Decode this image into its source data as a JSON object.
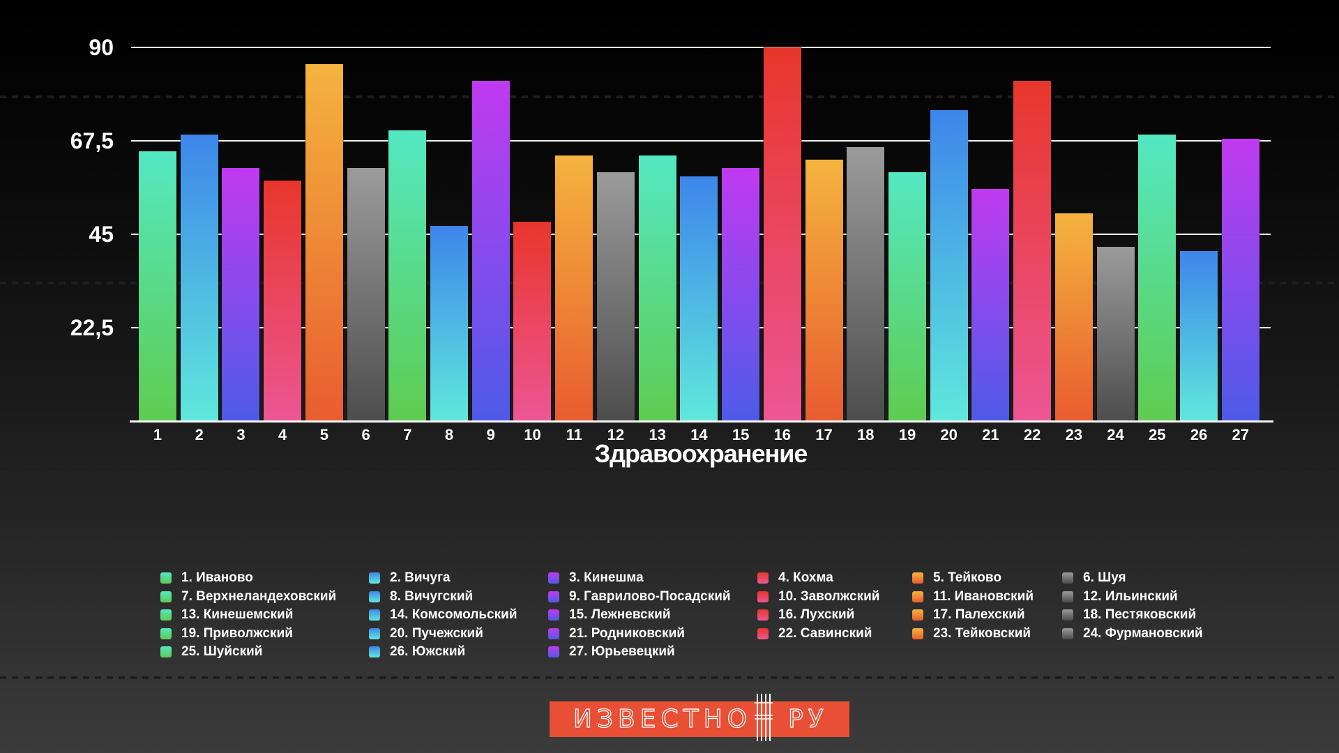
{
  "chart": {
    "y_tick_labels": [
      "90",
      "67,5",
      "45",
      "22,5"
    ],
    "xlabel": "Здравоохранение"
  },
  "chart_data": {
    "type": "bar",
    "title": "",
    "xlabel": "Здравоохранение",
    "ylabel": "",
    "ylim": [
      0,
      90
    ],
    "y_ticks": [
      90,
      67.5,
      45,
      22.5
    ],
    "grid": true,
    "legend_position": "bottom",
    "categories": [
      1,
      2,
      3,
      4,
      5,
      6,
      7,
      8,
      9,
      10,
      11,
      12,
      13,
      14,
      15,
      16,
      17,
      18,
      19,
      20,
      21,
      22,
      23,
      24,
      25,
      26,
      27
    ],
    "values": [
      65,
      69,
      61,
      58,
      86,
      61,
      70,
      47,
      82,
      48,
      64,
      60,
      64,
      59,
      61,
      90,
      63,
      66,
      60,
      75,
      56,
      82,
      50,
      42,
      69,
      41,
      68
    ],
    "series_labels": [
      "1. Иваново",
      "2. Вичуга",
      "3. Кинешма",
      "4. Кохма",
      "5. Тейково",
      "6. Шуя",
      "7. Верхнеландеховский",
      "8. Вичугский",
      "9. Гаврилово-Посадский",
      "10. Заволжский",
      "11. Ивановский",
      "12. Ильинский",
      "13. Кинешемский",
      "14. Комсомольский",
      "15. Лежневский",
      "16. Лухский",
      "17. Палехский",
      "18. Пестяковский",
      "19. Приволжский",
      "20. Пучежский",
      "21. Родниковский",
      "22. Савинский",
      "23. Тейковский",
      "24. Фурмановский",
      "25. Шуйский",
      "26. Южский",
      "27. Юрьевецкий"
    ]
  },
  "palette": {
    "green": {
      "top": "#54E8C2",
      "bottom": "#5ECC50"
    },
    "blue": {
      "top": "#3D86EA",
      "bottom": "#5FE8DC"
    },
    "purple": {
      "top": "#C03AF0",
      "bottom": "#4E5BE8"
    },
    "red": {
      "top": "#E8362B",
      "bottom": "#EC5694"
    },
    "orange": {
      "top": "#F4B43E",
      "bottom": "#E95C2F"
    },
    "gray": {
      "top": "#9B9B9B",
      "bottom": "#4D4D4D"
    }
  },
  "group_cycle": [
    "green",
    "blue",
    "purple",
    "red",
    "orange",
    "gray"
  ],
  "legend": {
    "columns": [
      {
        "group": "green",
        "items": [
          "1. Иваново",
          "7. Верхнеландеховский",
          "13. Кинешемский",
          "19. Приволжский",
          "25. Шуйский"
        ]
      },
      {
        "group": "blue",
        "items": [
          "2. Вичуга",
          "8. Вичугский",
          "14. Комсомольский",
          "20. Пучежский",
          "26. Южский"
        ]
      },
      {
        "group": "purple",
        "items": [
          "3. Кинешма",
          "9. Гаврилово-Посадский",
          "15. Лежневский",
          "21. Родниковский",
          "27. Юрьевецкий"
        ]
      },
      {
        "group": "red",
        "items": [
          "4. Кохма",
          "10. Заволжский",
          "16. Лухский",
          "22. Савинский"
        ]
      },
      {
        "group": "orange",
        "items": [
          "5. Тейково",
          "11. Ивановский",
          "17. Палехский",
          "23. Тейковский"
        ]
      },
      {
        "group": "gray",
        "items": [
          "6. Шуя",
          "12. Ильинский",
          "18. Пестяковский",
          "24. Фурмановский"
        ]
      }
    ]
  },
  "logo": {
    "main": "ИЗВЕСТНО",
    "suffix": "РУ",
    "background": "#E84F35"
  }
}
